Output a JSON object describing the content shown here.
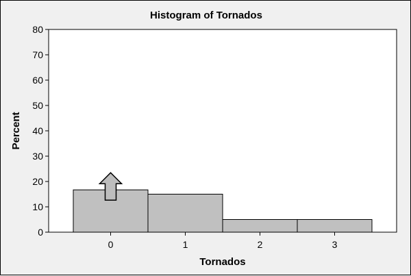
{
  "chart_data": {
    "type": "bar",
    "title": "Histogram of Tornados",
    "xlabel": "Tornados",
    "ylabel": "Percent",
    "categories": [
      "0",
      "1",
      "2",
      "3"
    ],
    "values": [
      16.7,
      15,
      5,
      5
    ],
    "ylim": [
      0,
      80
    ],
    "yticks": [
      0,
      10,
      20,
      30,
      40,
      50,
      60,
      70,
      80
    ],
    "grid": false,
    "legend": "none",
    "annotations": [
      {
        "type": "arrow-up-icon",
        "category": "0"
      }
    ],
    "colors": {
      "bar_fill": "#c0c0c0",
      "plot_bg": "#ffffff",
      "frame_bg": "#f0f0f0"
    }
  }
}
